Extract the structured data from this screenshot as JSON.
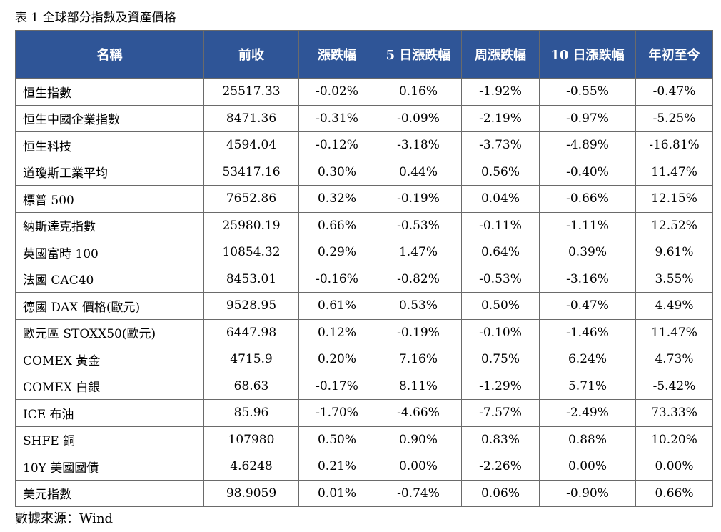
{
  "caption": "表 1 全球部分指數及資產價格",
  "headers": [
    "名稱",
    "前收",
    "漲跌幅",
    "5 日漲跌幅",
    "周漲跌幅",
    "10 日漲跌幅",
    "年初至今"
  ],
  "rows": [
    [
      "恒生指數",
      "25517.33",
      "-0.02%",
      "0.16%",
      "-1.92%",
      "-0.55%",
      "-0.47%"
    ],
    [
      "恒生中國企業指數",
      "8471.36",
      "-0.31%",
      "-0.09%",
      "-2.19%",
      "-0.97%",
      "-5.25%"
    ],
    [
      "恒生科技",
      "4594.04",
      "-0.12%",
      "-3.18%",
      "-3.73%",
      "-4.89%",
      "-16.81%"
    ],
    [
      "道瓊斯工業平均",
      "53417.16",
      "0.30%",
      "0.44%",
      "0.56%",
      "-0.40%",
      "11.47%"
    ],
    [
      "標普 500",
      "7652.86",
      "0.32%",
      "-0.19%",
      "0.04%",
      "-0.66%",
      "12.15%"
    ],
    [
      "納斯達克指數",
      "25980.19",
      "0.66%",
      "-0.53%",
      "-0.11%",
      "-1.11%",
      "12.52%"
    ],
    [
      "英國富時 100",
      "10854.32",
      "0.29%",
      "1.47%",
      "0.64%",
      "0.39%",
      "9.61%"
    ],
    [
      "法國 CAC40",
      "8453.01",
      "-0.16%",
      "-0.82%",
      "-0.53%",
      "-3.16%",
      "3.55%"
    ],
    [
      "德國 DAX 價格(歐元)",
      "9528.95",
      "0.61%",
      "0.53%",
      "0.50%",
      "-0.47%",
      "4.49%"
    ],
    [
      "歐元區 STOXX50(歐元)",
      "6447.98",
      "0.12%",
      "-0.19%",
      "-0.10%",
      "-1.46%",
      "11.47%"
    ],
    [
      "COMEX 黃金",
      "4715.9",
      "0.20%",
      "7.16%",
      "0.75%",
      "6.24%",
      "4.73%"
    ],
    [
      "COMEX 白銀",
      "68.63",
      "-0.17%",
      "8.11%",
      "-1.29%",
      "5.71%",
      "-5.42%"
    ],
    [
      "ICE 布油",
      "85.96",
      "-1.70%",
      "-4.66%",
      "-7.57%",
      "-2.49%",
      "73.33%"
    ],
    [
      "SHFE 銅",
      "107980",
      "0.50%",
      "0.90%",
      "0.83%",
      "0.88%",
      "10.20%"
    ],
    [
      "10Y 美國國債",
      "4.6248",
      "0.21%",
      "0.00%",
      "-2.26%",
      "0.00%",
      "0.00%"
    ],
    [
      "美元指數",
      "98.9059",
      "0.01%",
      "-0.74%",
      "0.06%",
      "-0.90%",
      "0.66%"
    ]
  ],
  "source": "數據來源：Wind",
  "colors": {
    "header_bg": "#2f5597",
    "header_text": "#ffffff",
    "border": "#6a6a6a"
  }
}
